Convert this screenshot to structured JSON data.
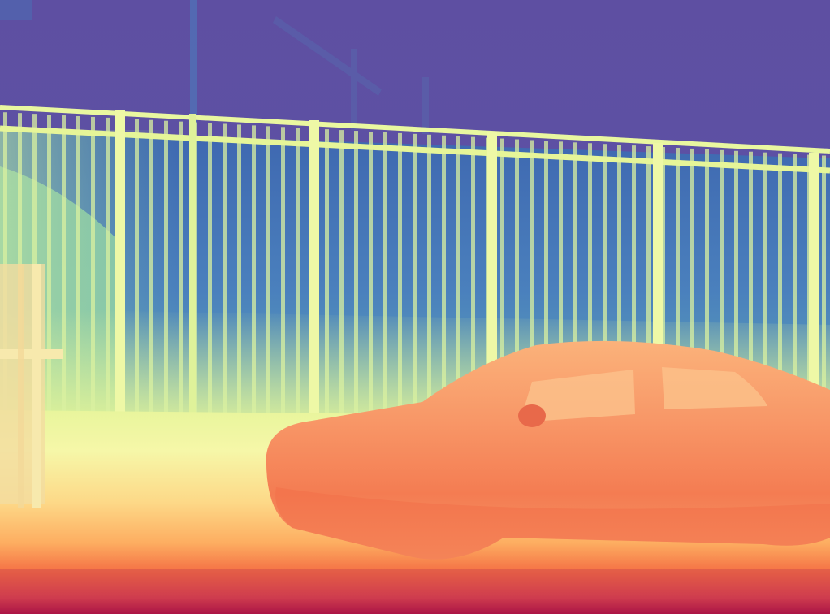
{
  "image": {
    "kind": "depth-map",
    "description_colormap": "spectral",
    "palette": {
      "far": "#5e4fa2",
      "far_mid": "#3f6fb3",
      "mid_blue": "#4a8bc0",
      "teal": "#66c2a5",
      "mid": "#abdda4",
      "near_mid": "#e6f598",
      "pale": "#f4f9a6",
      "near": "#fdae61",
      "car": "#f6855a",
      "closer": "#f46d43",
      "closest": "#d53e4f",
      "edge": "#9e0142"
    }
  }
}
